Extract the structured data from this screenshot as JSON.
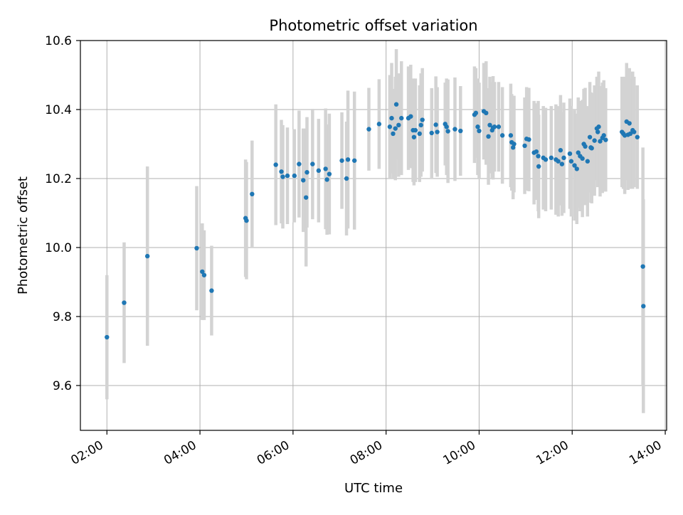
{
  "chart_data": {
    "type": "scatter",
    "title": "Photometric offset variation",
    "xlabel": "UTC time",
    "ylabel": "Photometric offset",
    "x_unit": "hours UTC",
    "xlim": [
      1.43,
      14.03
    ],
    "ylim": [
      9.47,
      10.6
    ],
    "xticks": [
      {
        "x": 2,
        "label": "02:00"
      },
      {
        "x": 4,
        "label": "04:00"
      },
      {
        "x": 6,
        "label": "06:00"
      },
      {
        "x": 8,
        "label": "08:00"
      },
      {
        "x": 10,
        "label": "10:00"
      },
      {
        "x": 12,
        "label": "12:00"
      },
      {
        "x": 14,
        "label": "14:00"
      }
    ],
    "yticks": [
      {
        "y": 9.6,
        "label": "9.6"
      },
      {
        "y": 9.8,
        "label": "9.8"
      },
      {
        "y": 10.0,
        "label": "10.0"
      },
      {
        "y": 10.2,
        "label": "10.2"
      },
      {
        "y": 10.4,
        "label": "10.4"
      },
      {
        "y": 10.6,
        "label": "10.6"
      }
    ],
    "grid": true,
    "colors": {
      "points": "#1f77b4",
      "errorbars": "#d3d3d3",
      "grid": "#b0b0b0"
    },
    "series": [
      {
        "columns": [
          "x",
          "y",
          "yerr"
        ],
        "points": [
          [
            2.0,
            9.74,
            0.18
          ],
          [
            2.37,
            9.84,
            0.175
          ],
          [
            2.87,
            9.975,
            0.26
          ],
          [
            3.93,
            9.998,
            0.18
          ],
          [
            4.05,
            9.93,
            0.14
          ],
          [
            4.09,
            9.92,
            0.13
          ],
          [
            4.25,
            9.875,
            0.13
          ],
          [
            4.98,
            10.085,
            0.17
          ],
          [
            5.0,
            10.078,
            0.17
          ],
          [
            5.12,
            10.155,
            0.155
          ],
          [
            5.63,
            10.24,
            0.175
          ],
          [
            5.75,
            10.22,
            0.15
          ],
          [
            5.78,
            10.205,
            0.15
          ],
          [
            5.88,
            10.208,
            0.14
          ],
          [
            6.03,
            10.208,
            0.135
          ],
          [
            6.13,
            10.242,
            0.155
          ],
          [
            6.22,
            10.195,
            0.15
          ],
          [
            6.28,
            10.145,
            0.2
          ],
          [
            6.3,
            10.218,
            0.16
          ],
          [
            6.42,
            10.242,
            0.16
          ],
          [
            6.55,
            10.223,
            0.15
          ],
          [
            6.7,
            10.228,
            0.175
          ],
          [
            6.73,
            10.197,
            0.16
          ],
          [
            6.78,
            10.213,
            0.175
          ],
          [
            7.05,
            10.252,
            0.14
          ],
          [
            7.15,
            10.2,
            0.165
          ],
          [
            7.18,
            10.255,
            0.2
          ],
          [
            7.32,
            10.252,
            0.2
          ],
          [
            7.63,
            10.343,
            0.12
          ],
          [
            7.85,
            10.358,
            0.13
          ],
          [
            8.08,
            10.35,
            0.15
          ],
          [
            8.12,
            10.375,
            0.16
          ],
          [
            8.15,
            10.33,
            0.13
          ],
          [
            8.2,
            10.345,
            0.15
          ],
          [
            8.22,
            10.415,
            0.16
          ],
          [
            8.27,
            10.355,
            0.15
          ],
          [
            8.33,
            10.375,
            0.165
          ],
          [
            8.48,
            10.375,
            0.15
          ],
          [
            8.53,
            10.38,
            0.15
          ],
          [
            8.58,
            10.34,
            0.15
          ],
          [
            8.6,
            10.32,
            0.14
          ],
          [
            8.63,
            10.34,
            0.15
          ],
          [
            8.72,
            10.33,
            0.14
          ],
          [
            8.75,
            10.355,
            0.15
          ],
          [
            8.78,
            10.37,
            0.15
          ],
          [
            8.98,
            10.332,
            0.13
          ],
          [
            9.07,
            10.356,
            0.14
          ],
          [
            9.1,
            10.335,
            0.13
          ],
          [
            9.27,
            10.358,
            0.12
          ],
          [
            9.3,
            10.35,
            0.14
          ],
          [
            9.33,
            10.337,
            0.15
          ],
          [
            9.48,
            10.343,
            0.15
          ],
          [
            9.6,
            10.338,
            0.13
          ],
          [
            9.9,
            10.385,
            0.14
          ],
          [
            9.93,
            10.39,
            0.13
          ],
          [
            9.97,
            10.35,
            0.14
          ],
          [
            10.0,
            10.338,
            0.14
          ],
          [
            10.1,
            10.395,
            0.14
          ],
          [
            10.15,
            10.39,
            0.15
          ],
          [
            10.2,
            10.322,
            0.14
          ],
          [
            10.23,
            10.355,
            0.14
          ],
          [
            10.28,
            10.34,
            0.14
          ],
          [
            10.3,
            10.347,
            0.15
          ],
          [
            10.33,
            10.35,
            0.13
          ],
          [
            10.42,
            10.35,
            0.13
          ],
          [
            10.5,
            10.325,
            0.14
          ],
          [
            10.68,
            10.325,
            0.15
          ],
          [
            10.7,
            10.305,
            0.14
          ],
          [
            10.73,
            10.29,
            0.15
          ],
          [
            10.75,
            10.3,
            0.14
          ],
          [
            10.98,
            10.295,
            0.14
          ],
          [
            11.02,
            10.315,
            0.15
          ],
          [
            11.07,
            10.313,
            0.15
          ],
          [
            11.18,
            10.275,
            0.15
          ],
          [
            11.23,
            10.278,
            0.14
          ],
          [
            11.27,
            10.265,
            0.16
          ],
          [
            11.28,
            10.235,
            0.15
          ],
          [
            11.38,
            10.26,
            0.15
          ],
          [
            11.43,
            10.255,
            0.15
          ],
          [
            11.55,
            10.26,
            0.15
          ],
          [
            11.65,
            10.255,
            0.16
          ],
          [
            11.7,
            10.25,
            0.16
          ],
          [
            11.75,
            10.282,
            0.16
          ],
          [
            11.78,
            10.242,
            0.15
          ],
          [
            11.82,
            10.26,
            0.16
          ],
          [
            11.95,
            10.272,
            0.16
          ],
          [
            11.98,
            10.25,
            0.16
          ],
          [
            12.05,
            10.238,
            0.16
          ],
          [
            12.1,
            10.228,
            0.16
          ],
          [
            12.13,
            10.275,
            0.16
          ],
          [
            12.17,
            10.265,
            0.16
          ],
          [
            12.22,
            10.258,
            0.17
          ],
          [
            12.25,
            10.3,
            0.16
          ],
          [
            12.28,
            10.293,
            0.17
          ],
          [
            12.33,
            10.25,
            0.16
          ],
          [
            12.38,
            10.32,
            0.16
          ],
          [
            12.4,
            10.29,
            0.16
          ],
          [
            12.42,
            10.288,
            0.16
          ],
          [
            12.48,
            10.31,
            0.16
          ],
          [
            12.53,
            10.345,
            0.15
          ],
          [
            12.55,
            10.335,
            0.16
          ],
          [
            12.57,
            10.35,
            0.16
          ],
          [
            12.6,
            10.308,
            0.16
          ],
          [
            12.65,
            10.318,
            0.16
          ],
          [
            12.68,
            10.325,
            0.16
          ],
          [
            12.72,
            10.312,
            0.15
          ],
          [
            13.07,
            10.335,
            0.16
          ],
          [
            13.1,
            10.33,
            0.16
          ],
          [
            13.13,
            10.325,
            0.17
          ],
          [
            13.17,
            10.365,
            0.17
          ],
          [
            13.2,
            10.327,
            0.16
          ],
          [
            13.23,
            10.36,
            0.16
          ],
          [
            13.25,
            10.33,
            0.16
          ],
          [
            13.3,
            10.34,
            0.17
          ],
          [
            13.33,
            10.335,
            0.16
          ],
          [
            13.4,
            10.32,
            0.15
          ],
          [
            13.52,
            9.945,
            0.345
          ],
          [
            13.53,
            9.83,
            0.31
          ]
        ]
      }
    ]
  }
}
